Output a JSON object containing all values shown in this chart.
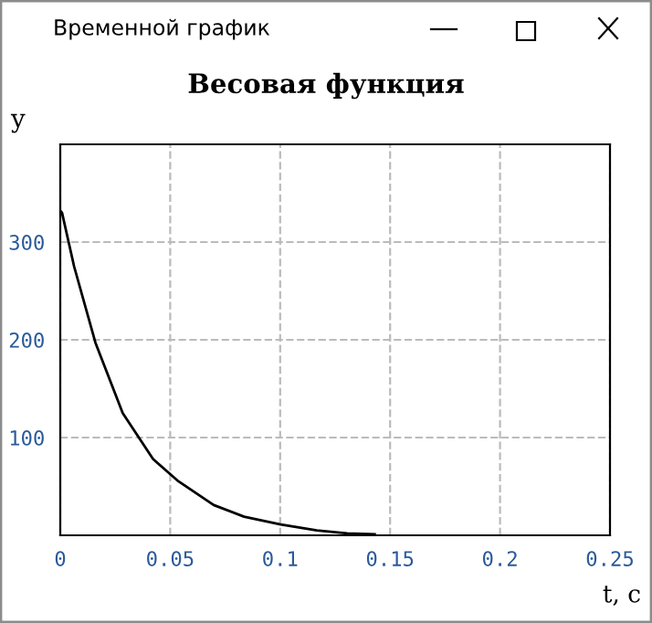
{
  "chart_data": {
    "type": "line",
    "title": "Весовая функция",
    "xlabel": "t, c",
    "ylabel": "y",
    "annotations": [
      "Временной график"
    ],
    "series": [
      {
        "color": "#000000",
        "x": [
          0,
          0.0008,
          0.0063,
          0.016,
          0.0284,
          0.0422,
          0.0533,
          0.0698,
          0.0836,
          0.1002,
          0.1167,
          0.1305,
          0.143
        ],
        "values": [
          332,
          330,
          275,
          197,
          125,
          78,
          56,
          31,
          19,
          11,
          5,
          2,
          1
        ]
      }
    ],
    "xlim": [
      0,
      0.25
    ],
    "ylim": [
      0,
      400
    ],
    "xticks": [
      0,
      0.05,
      0.1,
      0.15,
      0.2,
      0.25
    ],
    "yticks": [
      100,
      200,
      300
    ],
    "grid": true,
    "marker": "none",
    "line_style": "solid"
  }
}
